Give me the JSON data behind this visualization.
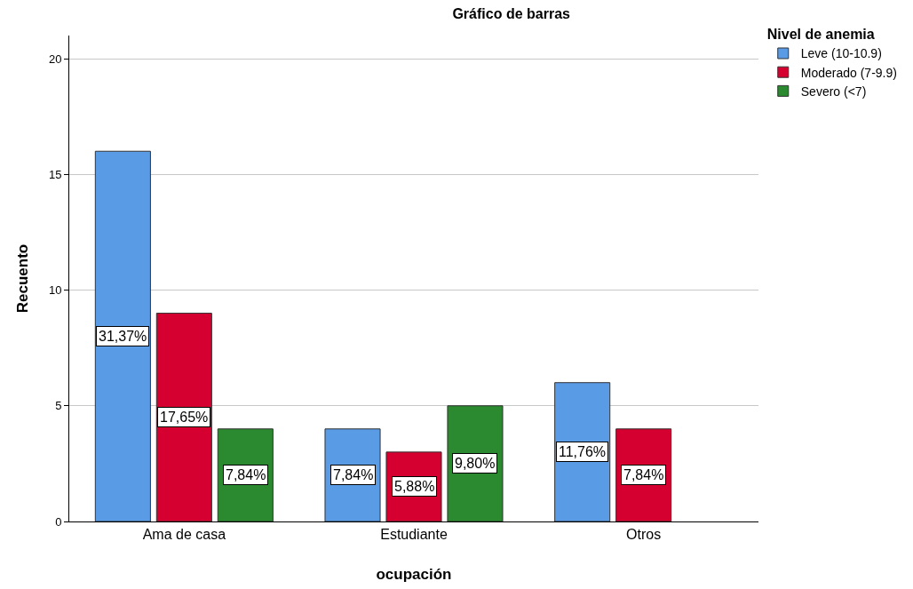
{
  "chart_data": {
    "type": "bar",
    "title": "Gráfico de barras",
    "xlabel": "ocupación",
    "ylabel": "Recuento",
    "legend_title": "Nivel de anemia",
    "categories": [
      "Ama de casa",
      "Estudiante",
      "Otros"
    ],
    "series": [
      {
        "name": "Leve (10-10.9)",
        "color": "#5a9be6",
        "values": [
          16,
          4,
          6
        ]
      },
      {
        "name": "Moderado (7-9.9)",
        "color": "#d5002f",
        "values": [
          9,
          3,
          4
        ]
      },
      {
        "name": "Severo (<7)",
        "color": "#2b8a2f",
        "values": [
          4,
          5,
          null
        ]
      }
    ],
    "annotations": [
      "31,37%",
      "17,65%",
      "7,84%",
      "7,84%",
      "5,88%",
      "9,80%",
      "11,76%",
      "7,84%"
    ],
    "ylim": [
      0,
      21
    ],
    "yticks": [
      0,
      5,
      10,
      15,
      20
    ],
    "grid": "y",
    "legend": "top right"
  }
}
